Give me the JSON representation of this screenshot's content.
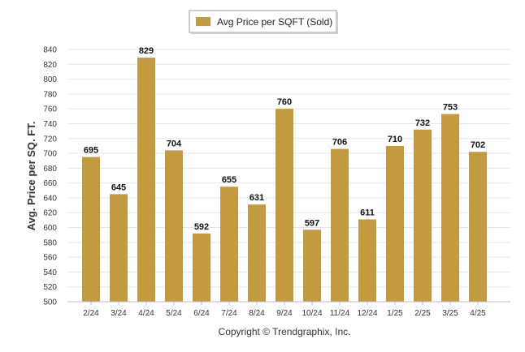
{
  "chart_data": {
    "type": "bar",
    "categories": [
      "2/24",
      "3/24",
      "4/24",
      "5/24",
      "6/24",
      "7/24",
      "8/24",
      "9/24",
      "10/24",
      "11/24",
      "12/24",
      "1/25",
      "2/25",
      "3/25",
      "4/25"
    ],
    "series": [
      {
        "name": "Avg Price per SQFT (Sold)",
        "values": [
          695,
          645,
          829,
          704,
          592,
          655,
          631,
          760,
          597,
          706,
          611,
          710,
          732,
          753,
          702
        ],
        "color": "#C49A40"
      }
    ],
    "ylabel": "Avg. Price per SQ. FT.",
    "xlabel": "",
    "ylim": [
      500,
      840
    ],
    "yticks": [
      500,
      520,
      540,
      560,
      580,
      600,
      620,
      640,
      660,
      680,
      700,
      720,
      740,
      760,
      780,
      800,
      820,
      840
    ],
    "grid": true,
    "legend": "top-center",
    "data_labels": true
  },
  "legend": {
    "label": "Avg Price per SQFT (Sold)"
  },
  "footer": {
    "copyright": "Copyright © Trendgraphix, Inc."
  },
  "colors": {
    "bar": "#C49A40",
    "grid": "#E6E6E6",
    "axis": "#BDBDBD"
  }
}
